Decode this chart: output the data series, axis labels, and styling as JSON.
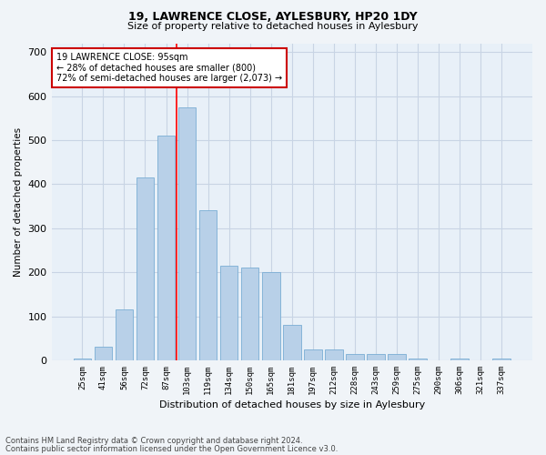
{
  "title_line1": "19, LAWRENCE CLOSE, AYLESBURY, HP20 1DY",
  "title_line2": "Size of property relative to detached houses in Aylesbury",
  "xlabel": "Distribution of detached houses by size in Aylesbury",
  "ylabel": "Number of detached properties",
  "categories": [
    "25sqm",
    "41sqm",
    "56sqm",
    "72sqm",
    "87sqm",
    "103sqm",
    "119sqm",
    "134sqm",
    "150sqm",
    "165sqm",
    "181sqm",
    "197sqm",
    "212sqm",
    "228sqm",
    "243sqm",
    "259sqm",
    "275sqm",
    "290sqm",
    "306sqm",
    "321sqm",
    "337sqm"
  ],
  "values": [
    5,
    30,
    115,
    415,
    510,
    575,
    340,
    215,
    210,
    200,
    80,
    25,
    25,
    15,
    15,
    15,
    5,
    0,
    5,
    0,
    5
  ],
  "bar_color": "#b8d0e8",
  "bar_edge_color": "#7aadd4",
  "background_color": "#e8f0f8",
  "grid_color": "#d0d8e8",
  "red_line_x": 4.5,
  "annotation_text": "19 LAWRENCE CLOSE: 95sqm\n← 28% of detached houses are smaller (800)\n72% of semi-detached houses are larger (2,073) →",
  "annotation_box_color": "#ffffff",
  "annotation_box_edge": "#cc0000",
  "ylim": [
    0,
    720
  ],
  "yticks": [
    0,
    100,
    200,
    300,
    400,
    500,
    600,
    700
  ],
  "footnote1": "Contains HM Land Registry data © Crown copyright and database right 2024.",
  "footnote2": "Contains public sector information licensed under the Open Government Licence v3.0."
}
